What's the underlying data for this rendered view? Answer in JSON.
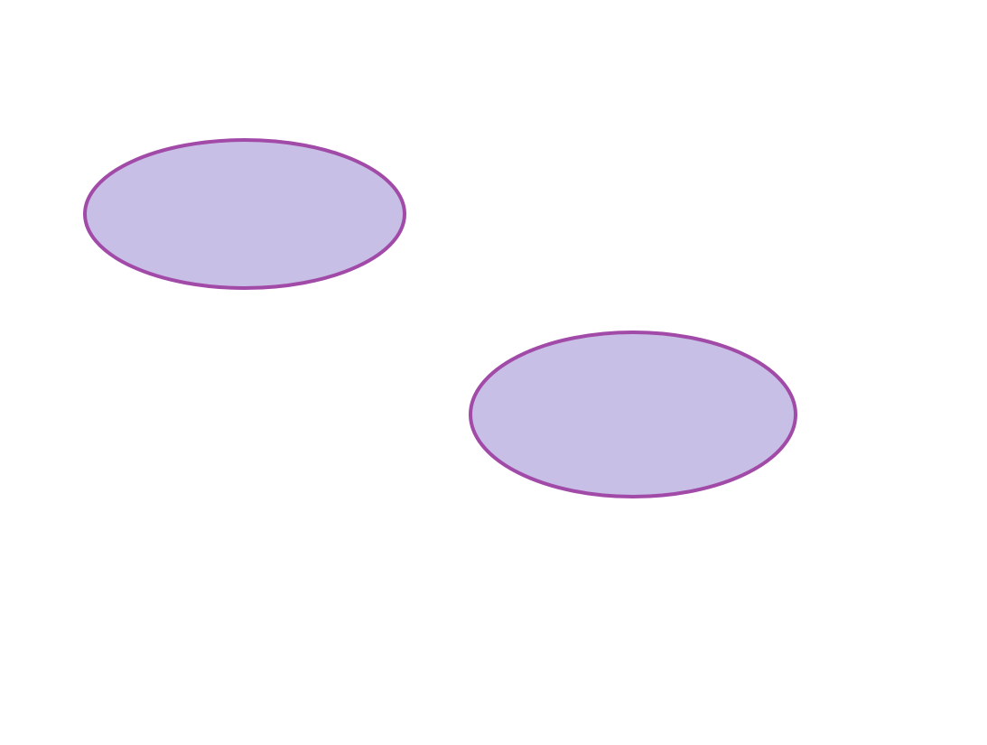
{
  "diagram": {
    "background_color": "#ffffff",
    "shapes": [
      {
        "kind": "ellipse",
        "label": "",
        "fill": "#c7bfe6",
        "stroke": "#a24aa8"
      },
      {
        "kind": "ellipse",
        "label": "",
        "fill": "#c7bfe6",
        "stroke": "#a24aa8"
      }
    ]
  }
}
